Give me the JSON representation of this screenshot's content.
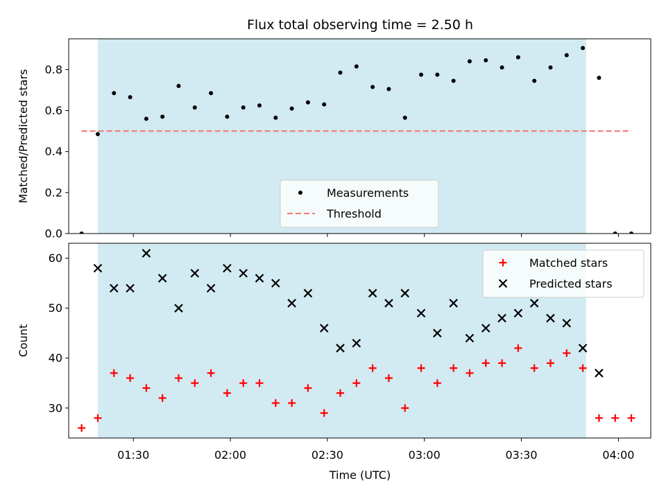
{
  "chart_data": {
    "title": "Flux total observing time = 2.50 h",
    "xlabel": "Time (UTC)",
    "x_ticks": [
      "01:30",
      "02:00",
      "02:30",
      "03:00",
      "03:30",
      "04:00"
    ],
    "x_range": [
      "01:10",
      "04:10"
    ],
    "shaded_span": [
      "01:19",
      "03:50"
    ],
    "colors": {
      "shade": "#add8e6",
      "threshold": "#f08080",
      "matched": "#ff0000",
      "predicted": "#000000",
      "measurement": "#000000"
    },
    "panels": [
      {
        "type": "scatter",
        "ylabel": "Matched/Predicted stars",
        "ylim": [
          0,
          0.95
        ],
        "y_ticks": [
          "0.0",
          "0.2",
          "0.4",
          "0.6",
          "0.8"
        ],
        "y_tick_values": [
          0,
          0.2,
          0.4,
          0.6,
          0.8
        ],
        "legend_position": "lower-center",
        "series": [
          {
            "name": "Measurements",
            "points": [
              [
                "01:14",
                0.0
              ],
              [
                "01:19",
                0.485
              ],
              [
                "01:24",
                0.685
              ],
              [
                "01:29",
                0.665
              ],
              [
                "01:34",
                0.56
              ],
              [
                "01:39",
                0.57
              ],
              [
                "01:44",
                0.72
              ],
              [
                "01:49",
                0.615
              ],
              [
                "01:54",
                0.685
              ],
              [
                "01:59",
                0.57
              ],
              [
                "02:04",
                0.615
              ],
              [
                "02:09",
                0.625
              ],
              [
                "02:14",
                0.565
              ],
              [
                "02:19",
                0.61
              ],
              [
                "02:24",
                0.64
              ],
              [
                "02:29",
                0.63
              ],
              [
                "02:34",
                0.785
              ],
              [
                "02:39",
                0.815
              ],
              [
                "02:44",
                0.715
              ],
              [
                "02:49",
                0.705
              ],
              [
                "02:54",
                0.565
              ],
              [
                "02:59",
                0.775
              ],
              [
                "03:04",
                0.775
              ],
              [
                "03:09",
                0.745
              ],
              [
                "03:14",
                0.84
              ],
              [
                "03:19",
                0.845
              ],
              [
                "03:24",
                0.81
              ],
              [
                "03:29",
                0.86
              ],
              [
                "03:34",
                0.745
              ],
              [
                "03:39",
                0.81
              ],
              [
                "03:44",
                0.87
              ],
              [
                "03:49",
                0.905
              ],
              [
                "03:54",
                0.76
              ],
              [
                "03:59",
                0.0
              ],
              [
                "04:04",
                0.0
              ]
            ]
          },
          {
            "name": "Threshold",
            "type": "line",
            "points": [
              [
                "01:14",
                0.5
              ],
              [
                "04:04",
                0.5
              ]
            ]
          }
        ]
      },
      {
        "type": "scatter",
        "ylabel": "Count",
        "ylim": [
          24,
          63
        ],
        "y_ticks": [
          "30",
          "40",
          "50",
          "60"
        ],
        "y_tick_values": [
          30,
          40,
          50,
          60
        ],
        "legend_position": "top-right",
        "series": [
          {
            "name": "Matched stars",
            "points": [
              [
                "01:14",
                26
              ],
              [
                "01:19",
                28
              ],
              [
                "01:24",
                37
              ],
              [
                "01:29",
                36
              ],
              [
                "01:34",
                34
              ],
              [
                "01:39",
                32
              ],
              [
                "01:44",
                36
              ],
              [
                "01:49",
                35
              ],
              [
                "01:54",
                37
              ],
              [
                "01:59",
                33
              ],
              [
                "02:04",
                35
              ],
              [
                "02:09",
                35
              ],
              [
                "02:14",
                31
              ],
              [
                "02:19",
                31
              ],
              [
                "02:24",
                34
              ],
              [
                "02:29",
                29
              ],
              [
                "02:34",
                33
              ],
              [
                "02:39",
                35
              ],
              [
                "02:44",
                38
              ],
              [
                "02:49",
                36
              ],
              [
                "02:54",
                30
              ],
              [
                "02:59",
                38
              ],
              [
                "03:04",
                35
              ],
              [
                "03:09",
                38
              ],
              [
                "03:14",
                37
              ],
              [
                "03:19",
                39
              ],
              [
                "03:24",
                39
              ],
              [
                "03:29",
                42
              ],
              [
                "03:34",
                38
              ],
              [
                "03:39",
                39
              ],
              [
                "03:44",
                41
              ],
              [
                "03:49",
                38
              ],
              [
                "03:54",
                28
              ],
              [
                "03:59",
                28
              ],
              [
                "04:04",
                28
              ]
            ]
          },
          {
            "name": "Predicted stars",
            "points": [
              [
                "01:19",
                58
              ],
              [
                "01:24",
                54
              ],
              [
                "01:29",
                54
              ],
              [
                "01:34",
                61
              ],
              [
                "01:39",
                56
              ],
              [
                "01:44",
                50
              ],
              [
                "01:49",
                57
              ],
              [
                "01:54",
                54
              ],
              [
                "01:59",
                58
              ],
              [
                "02:04",
                57
              ],
              [
                "02:09",
                56
              ],
              [
                "02:14",
                55
              ],
              [
                "02:19",
                51
              ],
              [
                "02:24",
                53
              ],
              [
                "02:29",
                46
              ],
              [
                "02:34",
                42
              ],
              [
                "02:39",
                43
              ],
              [
                "02:44",
                53
              ],
              [
                "02:49",
                51
              ],
              [
                "02:54",
                53
              ],
              [
                "02:59",
                49
              ],
              [
                "03:04",
                45
              ],
              [
                "03:09",
                51
              ],
              [
                "03:14",
                44
              ],
              [
                "03:19",
                46
              ],
              [
                "03:24",
                48
              ],
              [
                "03:29",
                49
              ],
              [
                "03:34",
                51
              ],
              [
                "03:39",
                48
              ],
              [
                "03:44",
                47
              ],
              [
                "03:49",
                42
              ],
              [
                "03:54",
                37
              ]
            ]
          }
        ]
      }
    ]
  }
}
